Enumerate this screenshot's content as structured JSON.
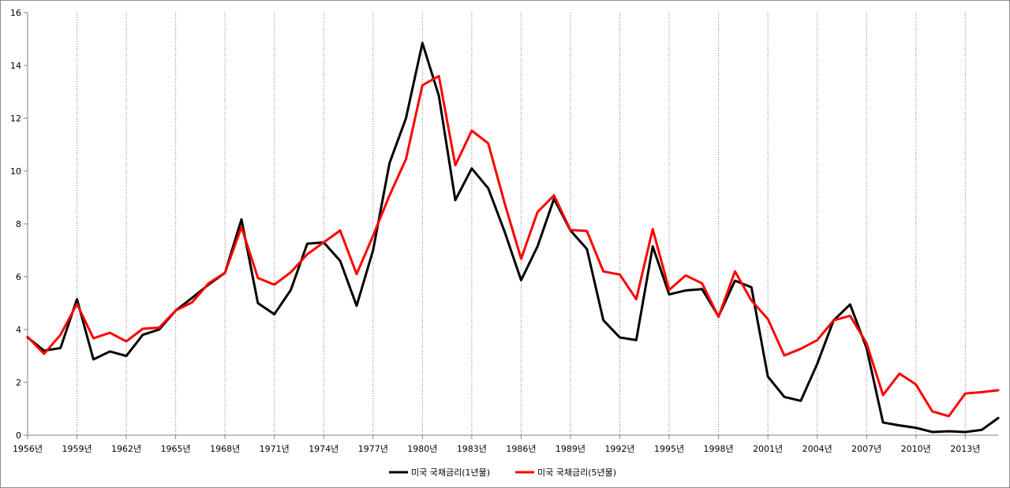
{
  "chart_data": {
    "type": "line",
    "title": "",
    "xlabel": "",
    "ylabel": "",
    "ylim": [
      0,
      16
    ],
    "yticks": [
      0,
      2,
      4,
      6,
      8,
      10,
      12,
      14,
      16
    ],
    "x": [
      1956,
      1957,
      1958,
      1959,
      1960,
      1961,
      1962,
      1963,
      1964,
      1965,
      1966,
      1967,
      1968,
      1969,
      1970,
      1971,
      1972,
      1973,
      1974,
      1975,
      1976,
      1977,
      1978,
      1979,
      1980,
      1981,
      1982,
      1983,
      1984,
      1985,
      1986,
      1987,
      1988,
      1989,
      1990,
      1991,
      1992,
      1993,
      1994,
      1995,
      1996,
      1997,
      1998,
      1999,
      2000,
      2001,
      2002,
      2003,
      2004,
      2005,
      2006,
      2007,
      2008,
      2009,
      2010,
      2011,
      2012,
      2013,
      2014,
      2015
    ],
    "xticks": [
      {
        "year": 1956,
        "label": "1956년"
      },
      {
        "year": 1959,
        "label": "1959년"
      },
      {
        "year": 1962,
        "label": "1962년"
      },
      {
        "year": 1965,
        "label": "1965년"
      },
      {
        "year": 1968,
        "label": "1968년"
      },
      {
        "year": 1971,
        "label": "1971년"
      },
      {
        "year": 1974,
        "label": "1974년"
      },
      {
        "year": 1977,
        "label": "1977년"
      },
      {
        "year": 1980,
        "label": "1980년"
      },
      {
        "year": 1983,
        "label": "1983년"
      },
      {
        "year": 1986,
        "label": "1986년"
      },
      {
        "year": 1989,
        "label": "1989년"
      },
      {
        "year": 1992,
        "label": "1992년"
      },
      {
        "year": 1995,
        "label": "1995년"
      },
      {
        "year": 1998,
        "label": "1998년"
      },
      {
        "year": 2001,
        "label": "2001년"
      },
      {
        "year": 2004,
        "label": "2004년"
      },
      {
        "year": 2007,
        "label": "2007년"
      },
      {
        "year": 2010,
        "label": "2010년"
      },
      {
        "year": 2013,
        "label": "2013년"
      }
    ],
    "vertical_gridlines": "dotted, every 3 years",
    "legend_position": "bottom-center",
    "series": [
      {
        "name": "미국 국채금리(1년물)",
        "color": "#000000",
        "values": [
          3.7,
          3.2,
          3.3,
          5.15,
          2.87,
          3.17,
          3.0,
          3.8,
          4.0,
          4.72,
          5.2,
          5.7,
          6.15,
          8.17,
          5.0,
          4.58,
          5.5,
          7.25,
          7.3,
          6.6,
          4.9,
          7.0,
          10.3,
          12.0,
          14.85,
          12.85,
          8.9,
          10.1,
          9.35,
          7.7,
          5.87,
          7.15,
          8.95,
          7.75,
          7.05,
          4.35,
          3.7,
          3.6,
          7.15,
          5.33,
          5.48,
          5.53,
          4.5,
          5.85,
          5.6,
          2.22,
          1.45,
          1.3,
          2.7,
          4.35,
          4.95,
          3.3,
          0.48,
          0.37,
          0.28,
          0.12,
          0.15,
          0.12,
          0.2,
          0.65
        ]
      },
      {
        "name": "미국 국채금리(5년물)",
        "color": "#ff0000",
        "values": [
          3.72,
          3.08,
          3.8,
          4.97,
          3.67,
          3.88,
          3.55,
          4.03,
          4.07,
          4.72,
          5.03,
          5.75,
          6.15,
          7.88,
          5.95,
          5.7,
          6.17,
          6.85,
          7.3,
          7.75,
          6.1,
          7.55,
          9.08,
          10.45,
          13.25,
          13.6,
          10.22,
          11.53,
          11.05,
          8.78,
          6.68,
          8.45,
          9.08,
          7.77,
          7.73,
          6.2,
          6.08,
          5.15,
          7.8,
          5.5,
          6.05,
          5.75,
          4.48,
          6.2,
          5.1,
          4.4,
          3.02,
          3.27,
          3.6,
          4.35,
          4.52,
          3.48,
          1.52,
          2.33,
          1.92,
          0.9,
          0.72,
          1.58,
          1.63,
          1.7
        ]
      }
    ]
  }
}
